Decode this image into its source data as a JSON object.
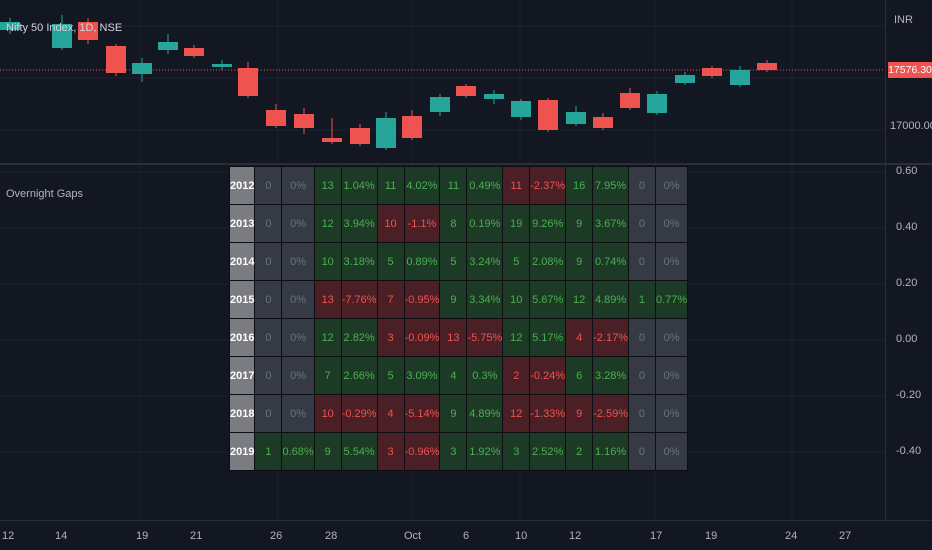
{
  "chart": {
    "title": "Nifty 50 Index, 1D, NSE",
    "currency": "INR",
    "price_labels": [
      "17000.00"
    ],
    "last_price": "17576.30",
    "up_color": "#26a69a",
    "down_color": "#ef5350"
  },
  "indicator": {
    "title": "Overnight Gaps",
    "axis_labels": [
      "0.60",
      "0.40",
      "0.20",
      "0.00",
      "-0.20",
      "-0.40"
    ]
  },
  "time_axis": {
    "labels": [
      "12",
      "14",
      "19",
      "21",
      "26",
      "28",
      "Oct",
      "6",
      "10",
      "12",
      "17",
      "19",
      "24",
      "27"
    ]
  },
  "gaps_table": {
    "rows": [
      {
        "year": "2012",
        "cells": [
          [
            "0",
            "0%",
            "neu"
          ],
          [
            "13",
            "1.04%",
            "pos"
          ],
          [
            "11",
            "4.02%",
            "pos"
          ],
          [
            "11",
            "0.49%",
            "pos"
          ],
          [
            "11",
            "-2.37%",
            "neg"
          ],
          [
            "16",
            "7.95%",
            "pos"
          ],
          [
            "0",
            "0%",
            "neu"
          ]
        ]
      },
      {
        "year": "2013",
        "cells": [
          [
            "0",
            "0%",
            "neu"
          ],
          [
            "12",
            "3.94%",
            "pos"
          ],
          [
            "10",
            "-1.1%",
            "neg"
          ],
          [
            "8",
            "0.19%",
            "pos"
          ],
          [
            "19",
            "9.26%",
            "pos"
          ],
          [
            "9",
            "3.67%",
            "pos"
          ],
          [
            "0",
            "0%",
            "neu"
          ]
        ]
      },
      {
        "year": "2014",
        "cells": [
          [
            "0",
            "0%",
            "neu"
          ],
          [
            "10",
            "3.18%",
            "pos"
          ],
          [
            "5",
            "0.89%",
            "pos"
          ],
          [
            "5",
            "3.24%",
            "pos"
          ],
          [
            "5",
            "2.08%",
            "pos"
          ],
          [
            "9",
            "0.74%",
            "pos"
          ],
          [
            "0",
            "0%",
            "neu"
          ]
        ]
      },
      {
        "year": "2015",
        "cells": [
          [
            "0",
            "0%",
            "neu"
          ],
          [
            "13",
            "-7.76%",
            "neg"
          ],
          [
            "7",
            "-0.95%",
            "neg"
          ],
          [
            "9",
            "3.34%",
            "pos"
          ],
          [
            "10",
            "5.67%",
            "pos"
          ],
          [
            "12",
            "4.89%",
            "pos"
          ],
          [
            "1",
            "0.77%",
            "pos"
          ]
        ]
      },
      {
        "year": "2016",
        "cells": [
          [
            "0",
            "0%",
            "neu"
          ],
          [
            "12",
            "2.82%",
            "pos"
          ],
          [
            "3",
            "-0.09%",
            "neg"
          ],
          [
            "13",
            "-5.75%",
            "neg"
          ],
          [
            "12",
            "5.17%",
            "pos"
          ],
          [
            "4",
            "-2.17%",
            "neg"
          ],
          [
            "0",
            "0%",
            "neu"
          ]
        ]
      },
      {
        "year": "2017",
        "cells": [
          [
            "0",
            "0%",
            "neu"
          ],
          [
            "7",
            "2.66%",
            "pos"
          ],
          [
            "5",
            "3.09%",
            "pos"
          ],
          [
            "4",
            "0.3%",
            "pos"
          ],
          [
            "2",
            "-0.24%",
            "neg"
          ],
          [
            "6",
            "3.28%",
            "pos"
          ],
          [
            "0",
            "0%",
            "neu"
          ]
        ]
      },
      {
        "year": "2018",
        "cells": [
          [
            "0",
            "0%",
            "neu"
          ],
          [
            "10",
            "-0.29%",
            "neg"
          ],
          [
            "4",
            "-5.14%",
            "neg"
          ],
          [
            "9",
            "4.89%",
            "pos"
          ],
          [
            "12",
            "-1.33%",
            "neg"
          ],
          [
            "9",
            "-2.59%",
            "neg"
          ],
          [
            "0",
            "0%",
            "neu"
          ]
        ]
      },
      {
        "year": "2019",
        "cells": [
          [
            "1",
            "0.68%",
            "pos"
          ],
          [
            "9",
            "5.54%",
            "pos"
          ],
          [
            "3",
            "-0.96%",
            "neg"
          ],
          [
            "3",
            "1.92%",
            "pos"
          ],
          [
            "3",
            "2.52%",
            "pos"
          ],
          [
            "2",
            "1.16%",
            "pos"
          ],
          [
            "0",
            "0%",
            "neu"
          ]
        ]
      }
    ]
  }
}
